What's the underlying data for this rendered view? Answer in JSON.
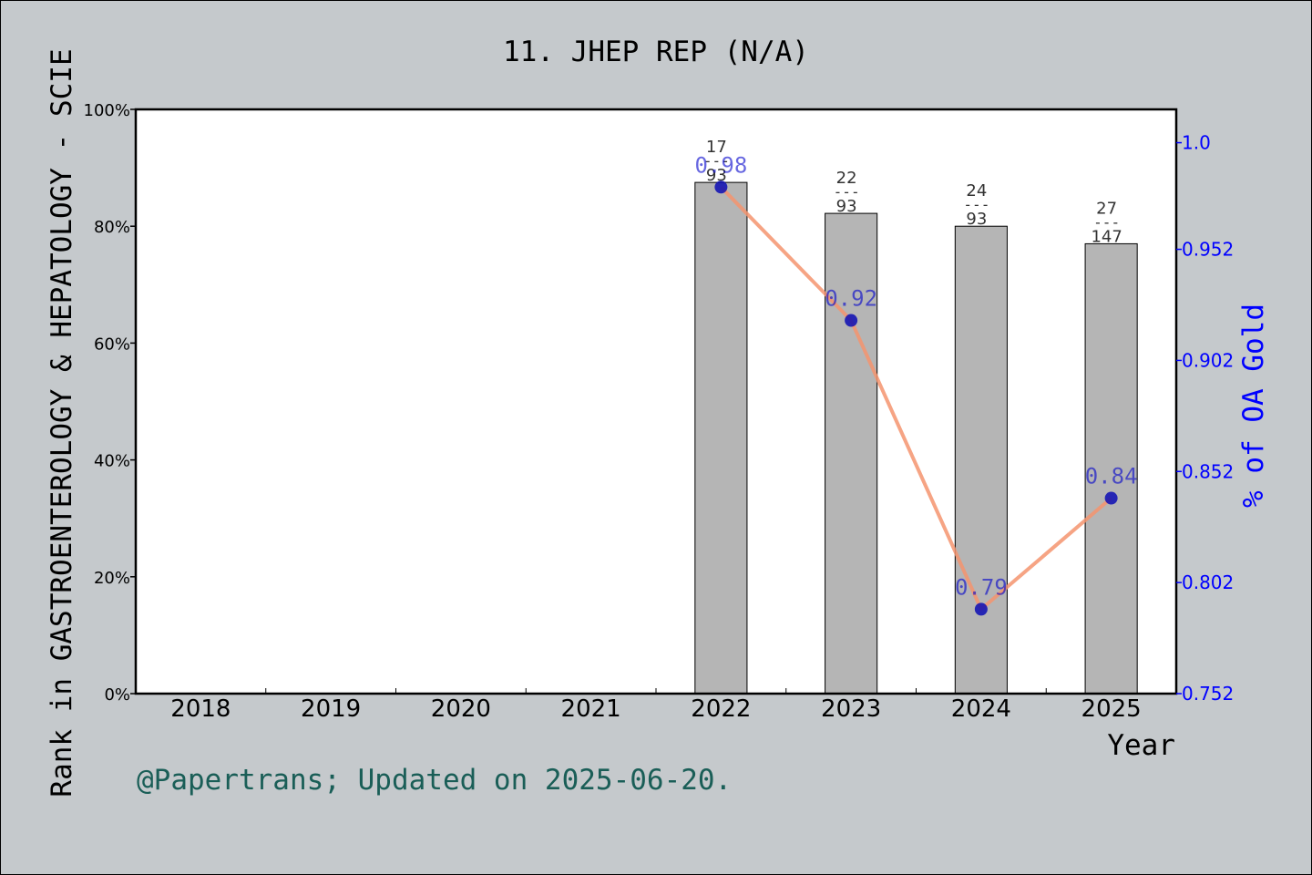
{
  "chart_data": {
    "type": "bar",
    "title": "11. JHEP REP (N/A)",
    "xlabel": "Year",
    "ylabel": "Rank in GASTROENTEROLOGY & HEPATOLOGY - SCIE",
    "y2label": "% of OA Gold",
    "categories": [
      "2018",
      "2019",
      "2020",
      "2021",
      "2022",
      "2023",
      "2024",
      "2025"
    ],
    "ylim": [
      0,
      100
    ],
    "yticks": [
      0,
      20,
      40,
      60,
      80,
      100
    ],
    "ytick_labels": [
      "0%",
      "20%",
      "40%",
      "60%",
      "80%",
      "100%"
    ],
    "y2lim": [
      0.752,
      1.015
    ],
    "y2ticks": [
      0.752,
      0.802,
      0.852,
      0.902,
      0.952,
      1.0
    ],
    "y2tick_labels": [
      "0.752",
      "0.802",
      "0.852",
      "0.902",
      "0.952",
      "1.0"
    ],
    "bars": [
      {
        "year": "2022",
        "value": 87.5,
        "rank": "17",
        "total": "93"
      },
      {
        "year": "2023",
        "value": 82.2,
        "rank": "22",
        "total": "93"
      },
      {
        "year": "2024",
        "value": 80.0,
        "rank": "24",
        "total": "93"
      },
      {
        "year": "2025",
        "value": 77.0,
        "rank": "27",
        "total": "147"
      }
    ],
    "bar_label_separator": "---",
    "line": {
      "name": "% of OA Gold",
      "x": [
        "2022",
        "2023",
        "2024",
        "2025"
      ],
      "values": [
        0.98,
        0.92,
        0.79,
        0.84
      ],
      "labels": [
        "0.98",
        "0.92",
        "0.79",
        "0.84"
      ]
    },
    "grid": false
  },
  "footer": {
    "credit": "@Papertrans; Updated on 2025-06-20."
  },
  "colors": {
    "background": "#c5c9cc",
    "plot_bg": "#ffffff",
    "bar": "#b5b5b5",
    "line": "#f5946e",
    "marker": "#0c0cb4",
    "right_axis": "#0000ff",
    "label_blue": "#0000cc",
    "footer": "#1a5e57"
  }
}
